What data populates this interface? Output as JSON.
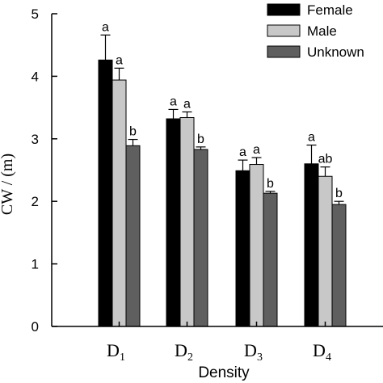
{
  "chart_data": {
    "type": "bar",
    "categories": [
      {
        "base": "D",
        "sub": "1"
      },
      {
        "base": "D",
        "sub": "2"
      },
      {
        "base": "D",
        "sub": "3"
      },
      {
        "base": "D",
        "sub": "4"
      }
    ],
    "series": [
      {
        "name": "Female",
        "color": "#000000",
        "values": [
          4.26,
          3.32,
          2.49,
          2.6
        ],
        "errors": [
          0.4,
          0.15,
          0.17,
          0.3
        ],
        "labels": [
          "a",
          "a",
          "a",
          "a"
        ]
      },
      {
        "name": "Male",
        "color": "#c8c8c8",
        "values": [
          3.94,
          3.34,
          2.59,
          2.4
        ],
        "errors": [
          0.19,
          0.09,
          0.11,
          0.15
        ],
        "labels": [
          "a",
          "a",
          "a",
          "ab"
        ]
      },
      {
        "name": "Unknown",
        "color": "#5f5f5f",
        "values": [
          2.89,
          2.83,
          2.13,
          1.95
        ],
        "errors": [
          0.1,
          0.04,
          0.03,
          0.05
        ],
        "labels": [
          "b",
          "b",
          "b",
          "b"
        ]
      }
    ],
    "xlabel": "Density",
    "ylabel": "CW / (m)",
    "ylim": [
      0,
      5
    ],
    "yticks": [
      "0",
      "1",
      "2",
      "3",
      "4",
      "5"
    ],
    "legend_position": "top-right",
    "grid": false
  }
}
